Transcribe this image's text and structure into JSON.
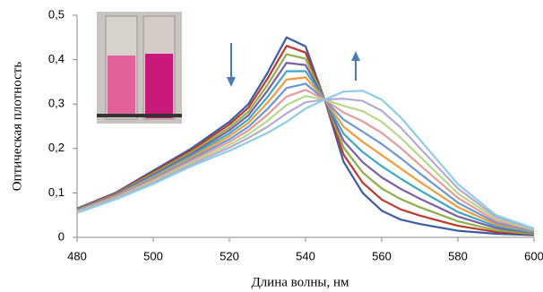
{
  "chart_data": {
    "type": "line",
    "y_label": "Оптическая плотность",
    "x_label": "Длина волны, нм",
    "x": [
      480,
      490,
      500,
      510,
      520,
      525,
      530,
      535,
      540,
      545,
      550,
      555,
      560,
      565,
      570,
      580,
      590,
      600
    ],
    "xlim": [
      480,
      600
    ],
    "xticks": [
      480,
      500,
      520,
      540,
      560,
      580,
      600
    ],
    "ylim": [
      0,
      0.5
    ],
    "yticks": [
      0,
      {
        "value": 0.1,
        "label": "0,1"
      },
      {
        "value": 0.2,
        "label": "0,2"
      },
      {
        "value": 0.3,
        "label": "0,3"
      },
      {
        "value": 0.4,
        "label": "0,4"
      },
      {
        "value": 0.5,
        "label": "0,5"
      }
    ],
    "grid": false,
    "series": [
      {
        "color": "#3b5ca3",
        "values": [
          0.065,
          0.1,
          0.15,
          0.2,
          0.26,
          0.3,
          0.37,
          0.45,
          0.43,
          0.31,
          0.17,
          0.1,
          0.06,
          0.04,
          0.03,
          0.015,
          0.008,
          0.005
        ]
      },
      {
        "color": "#c0392b",
        "values": [
          0.064,
          0.099,
          0.147,
          0.196,
          0.254,
          0.292,
          0.357,
          0.431,
          0.416,
          0.31,
          0.186,
          0.123,
          0.085,
          0.063,
          0.049,
          0.026,
          0.012,
          0.007
        ]
      },
      {
        "color": "#8db14a",
        "values": [
          0.063,
          0.097,
          0.144,
          0.192,
          0.247,
          0.283,
          0.343,
          0.412,
          0.402,
          0.31,
          0.202,
          0.146,
          0.11,
          0.086,
          0.068,
          0.036,
          0.016,
          0.008
        ]
      },
      {
        "color": "#7b5ea7",
        "values": [
          0.062,
          0.096,
          0.141,
          0.188,
          0.241,
          0.275,
          0.33,
          0.393,
          0.388,
          0.31,
          0.217,
          0.169,
          0.135,
          0.109,
          0.087,
          0.047,
          0.021,
          0.01
        ]
      },
      {
        "color": "#3ea7c4",
        "values": [
          0.061,
          0.094,
          0.138,
          0.184,
          0.234,
          0.266,
          0.316,
          0.374,
          0.374,
          0.31,
          0.233,
          0.192,
          0.16,
          0.132,
          0.106,
          0.057,
          0.025,
          0.011
        ]
      },
      {
        "color": "#f39a3b",
        "values": [
          0.06,
          0.093,
          0.135,
          0.18,
          0.228,
          0.258,
          0.303,
          0.355,
          0.36,
          0.31,
          0.249,
          0.215,
          0.185,
          0.155,
          0.125,
          0.068,
          0.029,
          0.013
        ]
      },
      {
        "color": "#6d95d6",
        "values": [
          0.059,
          0.091,
          0.132,
          0.176,
          0.221,
          0.249,
          0.289,
          0.336,
          0.346,
          0.31,
          0.265,
          0.238,
          0.21,
          0.178,
          0.144,
          0.078,
          0.033,
          0.014
        ]
      },
      {
        "color": "#e39b9b",
        "values": [
          0.058,
          0.09,
          0.129,
          0.172,
          0.215,
          0.241,
          0.276,
          0.317,
          0.332,
          0.31,
          0.281,
          0.261,
          0.235,
          0.201,
          0.163,
          0.089,
          0.037,
          0.016
        ]
      },
      {
        "color": "#b6d88a",
        "values": [
          0.057,
          0.088,
          0.126,
          0.168,
          0.208,
          0.232,
          0.262,
          0.298,
          0.318,
          0.31,
          0.296,
          0.284,
          0.26,
          0.224,
          0.182,
          0.099,
          0.042,
          0.017
        ]
      },
      {
        "color": "#b7a8d5",
        "values": [
          0.056,
          0.087,
          0.123,
          0.164,
          0.202,
          0.224,
          0.249,
          0.279,
          0.304,
          0.31,
          0.312,
          0.307,
          0.285,
          0.247,
          0.201,
          0.11,
          0.046,
          0.019
        ]
      },
      {
        "color": "#8ecde6",
        "values": [
          0.055,
          0.085,
          0.12,
          0.16,
          0.195,
          0.215,
          0.235,
          0.26,
          0.29,
          0.31,
          0.328,
          0.33,
          0.31,
          0.27,
          0.22,
          0.12,
          0.05,
          0.02
        ]
      }
    ]
  }
}
